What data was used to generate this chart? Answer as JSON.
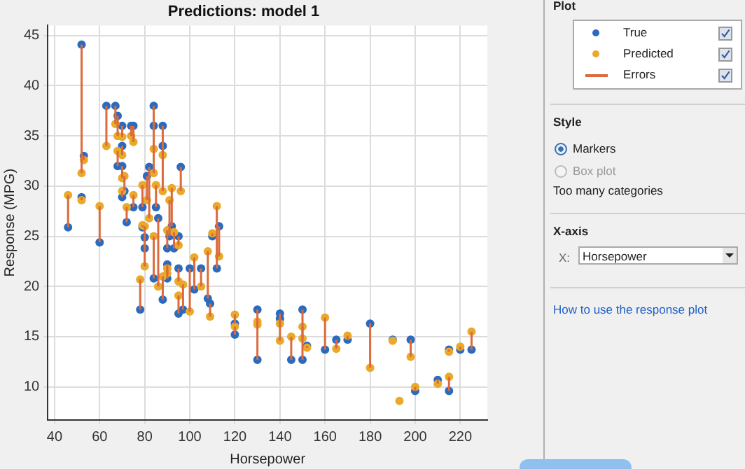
{
  "chart_data": {
    "type": "scatter",
    "title": "Predictions: model 1",
    "xlabel": "Horsepower",
    "ylabel": "Response (MPG)",
    "xlim": [
      37,
      232
    ],
    "xticks": [
      40,
      60,
      80,
      100,
      120,
      140,
      160,
      180,
      200,
      220
    ],
    "ylim": [
      6.7,
      46
    ],
    "yticks": [
      10,
      15,
      20,
      25,
      30,
      35,
      40,
      45
    ],
    "grid": true,
    "legend": "right",
    "marker": "circle",
    "annotations": [
      "Plot",
      "Style",
      "Markers",
      "Box plot",
      "Too many categories",
      "X-axis",
      "X:",
      "Horsepower",
      "How to use the response plot",
      "Errors"
    ],
    "series": [
      {
        "name": "True",
        "color": "#2a6bbf",
        "x": [
          46,
          52,
          52,
          53,
          60,
          63,
          67,
          68,
          68,
          70,
          70,
          70,
          70,
          71,
          72,
          74,
          75,
          75,
          78,
          79,
          79,
          80,
          80,
          81,
          82,
          84,
          84,
          84,
          85,
          86,
          88,
          88,
          88,
          90,
          90,
          90,
          91,
          92,
          93,
          95,
          95,
          95,
          96,
          97,
          100,
          102,
          105,
          108,
          109,
          110,
          112,
          113,
          120,
          120,
          130,
          130,
          140,
          140,
          145,
          150,
          150,
          152,
          160,
          165,
          170,
          180,
          190,
          193,
          198,
          200,
          210,
          215,
          215,
          220,
          225
        ],
        "values": [
          25.9,
          44.1,
          28.9,
          33,
          24.4,
          38,
          38,
          37,
          32,
          36,
          34,
          32,
          28.9,
          29.5,
          26.4,
          36,
          36,
          27.9,
          17.7,
          27.9,
          25.9,
          24.9,
          23.8,
          31,
          31.9,
          38,
          36,
          20.8,
          27.9,
          26.8,
          36,
          34,
          18.7,
          20.8,
          22.2,
          23.8,
          25,
          26,
          23.8,
          25,
          21.8,
          17.3,
          31.9,
          17.7,
          21.8,
          19.7,
          21.8,
          18.8,
          18.3,
          25,
          21.8,
          26,
          16.3,
          15.2,
          17.7,
          12.7,
          17.3,
          16.8,
          12.7,
          17.7,
          12.7,
          14.1,
          13.7,
          14.7,
          14.7,
          16.3,
          14.7,
          null,
          14.7,
          9.6,
          10.7,
          9.6,
          13.7,
          13.7,
          13.7
        ]
      },
      {
        "name": "Predicted",
        "color": "#eaa92a",
        "x": [
          46,
          52,
          52,
          53,
          60,
          63,
          67,
          68,
          68,
          70,
          70,
          70,
          70,
          71,
          72,
          74,
          75,
          75,
          78,
          79,
          79,
          80,
          80,
          81,
          82,
          84,
          84,
          84,
          85,
          86,
          88,
          88,
          88,
          90,
          90,
          90,
          91,
          92,
          93,
          95,
          95,
          95,
          96,
          97,
          100,
          102,
          105,
          108,
          109,
          110,
          112,
          113,
          120,
          120,
          130,
          130,
          140,
          140,
          145,
          150,
          150,
          152,
          160,
          165,
          170,
          180,
          190,
          193,
          198,
          200,
          210,
          215,
          215,
          220,
          225
        ],
        "values": [
          29.1,
          31.3,
          28.6,
          32.6,
          28,
          34,
          36.2,
          35,
          33.5,
          34.9,
          33.1,
          30.8,
          29.5,
          31,
          27.9,
          35,
          34.4,
          29.1,
          20.7,
          30.1,
          26.1,
          22,
          26,
          28.6,
          26.8,
          33.7,
          31.3,
          25,
          30.1,
          20,
          33.1,
          29.5,
          21,
          21.8,
          21.3,
          25.6,
          28.6,
          29.8,
          25.4,
          24.1,
          20.5,
          19.1,
          29.5,
          20.2,
          17.5,
          22.9,
          20,
          23.5,
          17,
          25.3,
          28,
          23,
          17.2,
          16,
          16.2,
          16.5,
          16.3,
          14.6,
          15,
          14.8,
          16,
          13.9,
          16.9,
          13.8,
          15.1,
          11.9,
          14.6,
          8.6,
          13,
          10,
          10.3,
          11,
          13.5,
          14,
          15.5
        ],
        "errors": [
          [
            25.9,
            29.1
          ],
          [
            31.3,
            44.1
          ],
          [
            28.6,
            28.9
          ],
          [
            32.6,
            33
          ],
          [
            24.4,
            28
          ],
          [
            34,
            38
          ],
          [
            36.2,
            38
          ],
          [
            35,
            37
          ],
          [
            32,
            33.5
          ],
          [
            34.9,
            36
          ],
          [
            33.1,
            34
          ],
          [
            30.8,
            32
          ],
          [
            28.9,
            29.5
          ],
          [
            29.5,
            31
          ],
          [
            26.4,
            27.9
          ],
          [
            35,
            36
          ],
          [
            34.4,
            36
          ],
          [
            27.9,
            29.1
          ],
          [
            17.7,
            20.7
          ],
          [
            27.9,
            30.1
          ],
          [
            25.9,
            26.1
          ],
          [
            22,
            24.9
          ],
          [
            23.8,
            26
          ],
          [
            28.6,
            31
          ],
          [
            26.8,
            31.9
          ],
          [
            33.7,
            38
          ],
          [
            31.3,
            36
          ],
          [
            20.8,
            25
          ],
          [
            27.9,
            30.1
          ],
          [
            20,
            26.8
          ],
          [
            33.1,
            36
          ],
          [
            29.5,
            34
          ],
          [
            18.7,
            21
          ],
          [
            20.8,
            21.8
          ],
          [
            21.3,
            22.2
          ],
          [
            23.8,
            25.6
          ],
          [
            25,
            28.6
          ],
          [
            26,
            29.8
          ],
          [
            23.8,
            25.4
          ],
          [
            24.1,
            25
          ],
          [
            20.5,
            21.8
          ],
          [
            17.3,
            19.1
          ],
          [
            29.5,
            31.9
          ],
          [
            17.7,
            20.2
          ],
          [
            17.5,
            21.8
          ],
          [
            19.7,
            22.9
          ],
          [
            20,
            21.8
          ],
          [
            18.8,
            23.5
          ],
          [
            17,
            18.3
          ],
          [
            25,
            25.3
          ],
          [
            21.8,
            28
          ],
          [
            23,
            26
          ],
          [
            16.3,
            17.2
          ],
          [
            15.2,
            16
          ],
          [
            16.2,
            17.7
          ],
          [
            12.7,
            16.5
          ],
          [
            16.3,
            17.3
          ],
          [
            14.6,
            16.8
          ],
          [
            12.7,
            15
          ],
          [
            14.8,
            17.7
          ],
          [
            12.7,
            16
          ],
          [
            13.9,
            14.1
          ],
          [
            13.7,
            16.9
          ],
          [
            13.8,
            14.7
          ],
          [
            14.7,
            15.1
          ],
          [
            11.9,
            16.3
          ],
          null,
          null,
          [
            13,
            14.7
          ],
          [
            9.6,
            10
          ],
          [
            10.3,
            10.7
          ],
          [
            9.6,
            11
          ],
          [
            13.5,
            13.7
          ],
          [
            13.7,
            14
          ],
          [
            13.7,
            15.5
          ]
        ]
      }
    ]
  }
}
